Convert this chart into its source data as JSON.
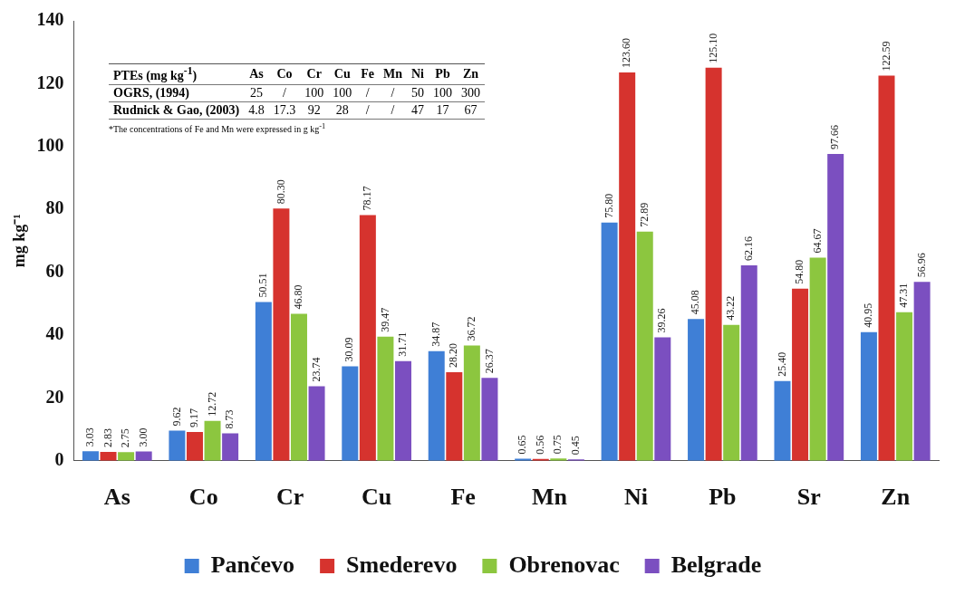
{
  "chart_data": {
    "type": "bar",
    "ylabel": "mg kg⁻¹",
    "categories": [
      "As",
      "Co",
      "Cr",
      "Cu",
      "Fe",
      "Mn",
      "Ni",
      "Pb",
      "Sr",
      "Zn"
    ],
    "ylim": [
      0,
      140
    ],
    "yticks": [
      0,
      20,
      40,
      60,
      80,
      100,
      120,
      140
    ],
    "grid": false,
    "legend": "bottom",
    "series": [
      {
        "name": "Pančevo",
        "color": "#3f7fd6",
        "values": [
          3.03,
          9.62,
          50.51,
          30.09,
          34.87,
          0.65,
          75.8,
          45.08,
          25.4,
          40.95
        ],
        "value_labels": [
          "3.03",
          "9.62",
          "50.51",
          "30.09",
          "34.87",
          "0.65",
          "75.80",
          "45.08",
          "25.40",
          "40.95"
        ]
      },
      {
        "name": "Smederevo",
        "color": "#d6332e",
        "values": [
          2.83,
          9.17,
          80.3,
          78.17,
          28.2,
          0.56,
          123.6,
          125.1,
          54.8,
          122.59
        ],
        "value_labels": [
          "2.83",
          "9.17",
          "80.30",
          "78.17",
          "28.20",
          "0.56",
          "123.60",
          "125.10",
          "54.80",
          "122.59"
        ]
      },
      {
        "name": "Obrenovac",
        "color": "#8cc63f",
        "values": [
          2.75,
          12.72,
          46.8,
          39.47,
          36.72,
          0.75,
          72.89,
          43.22,
          64.67,
          47.31
        ],
        "value_labels": [
          "2.75",
          "12.72",
          "46.80",
          "39.47",
          "36.72",
          "0.75",
          "72.89",
          "43.22",
          "64.67",
          "47.31"
        ]
      },
      {
        "name": "Belgrade",
        "color": "#7b4fc0",
        "values": [
          3.0,
          8.73,
          23.74,
          31.71,
          26.37,
          0.45,
          39.26,
          62.16,
          97.66,
          56.96
        ],
        "value_labels": [
          "3.00",
          "8.73",
          "23.74",
          "31.71",
          "26.37",
          "0.45",
          "39.26",
          "62.16",
          "97.66",
          "56.96"
        ]
      }
    ],
    "annotations": [
      "PTEs (mg kg$^{-1}$)\tAs\tCo\tCr\tCu\tFe\tMn\tNi\tPb\tZn",
      "OGRS, (1994)\t25\t/\t100\t100\t/\t/\t50\t100\t300",
      "Rudnick & Gao, (2003)\t4.8\t17.3\t92\t28\t/\t/\t47\t17\t67",
      "*The concentrations of Fe and Mn were expressed in g kg$^{-1}$"
    ]
  }
}
